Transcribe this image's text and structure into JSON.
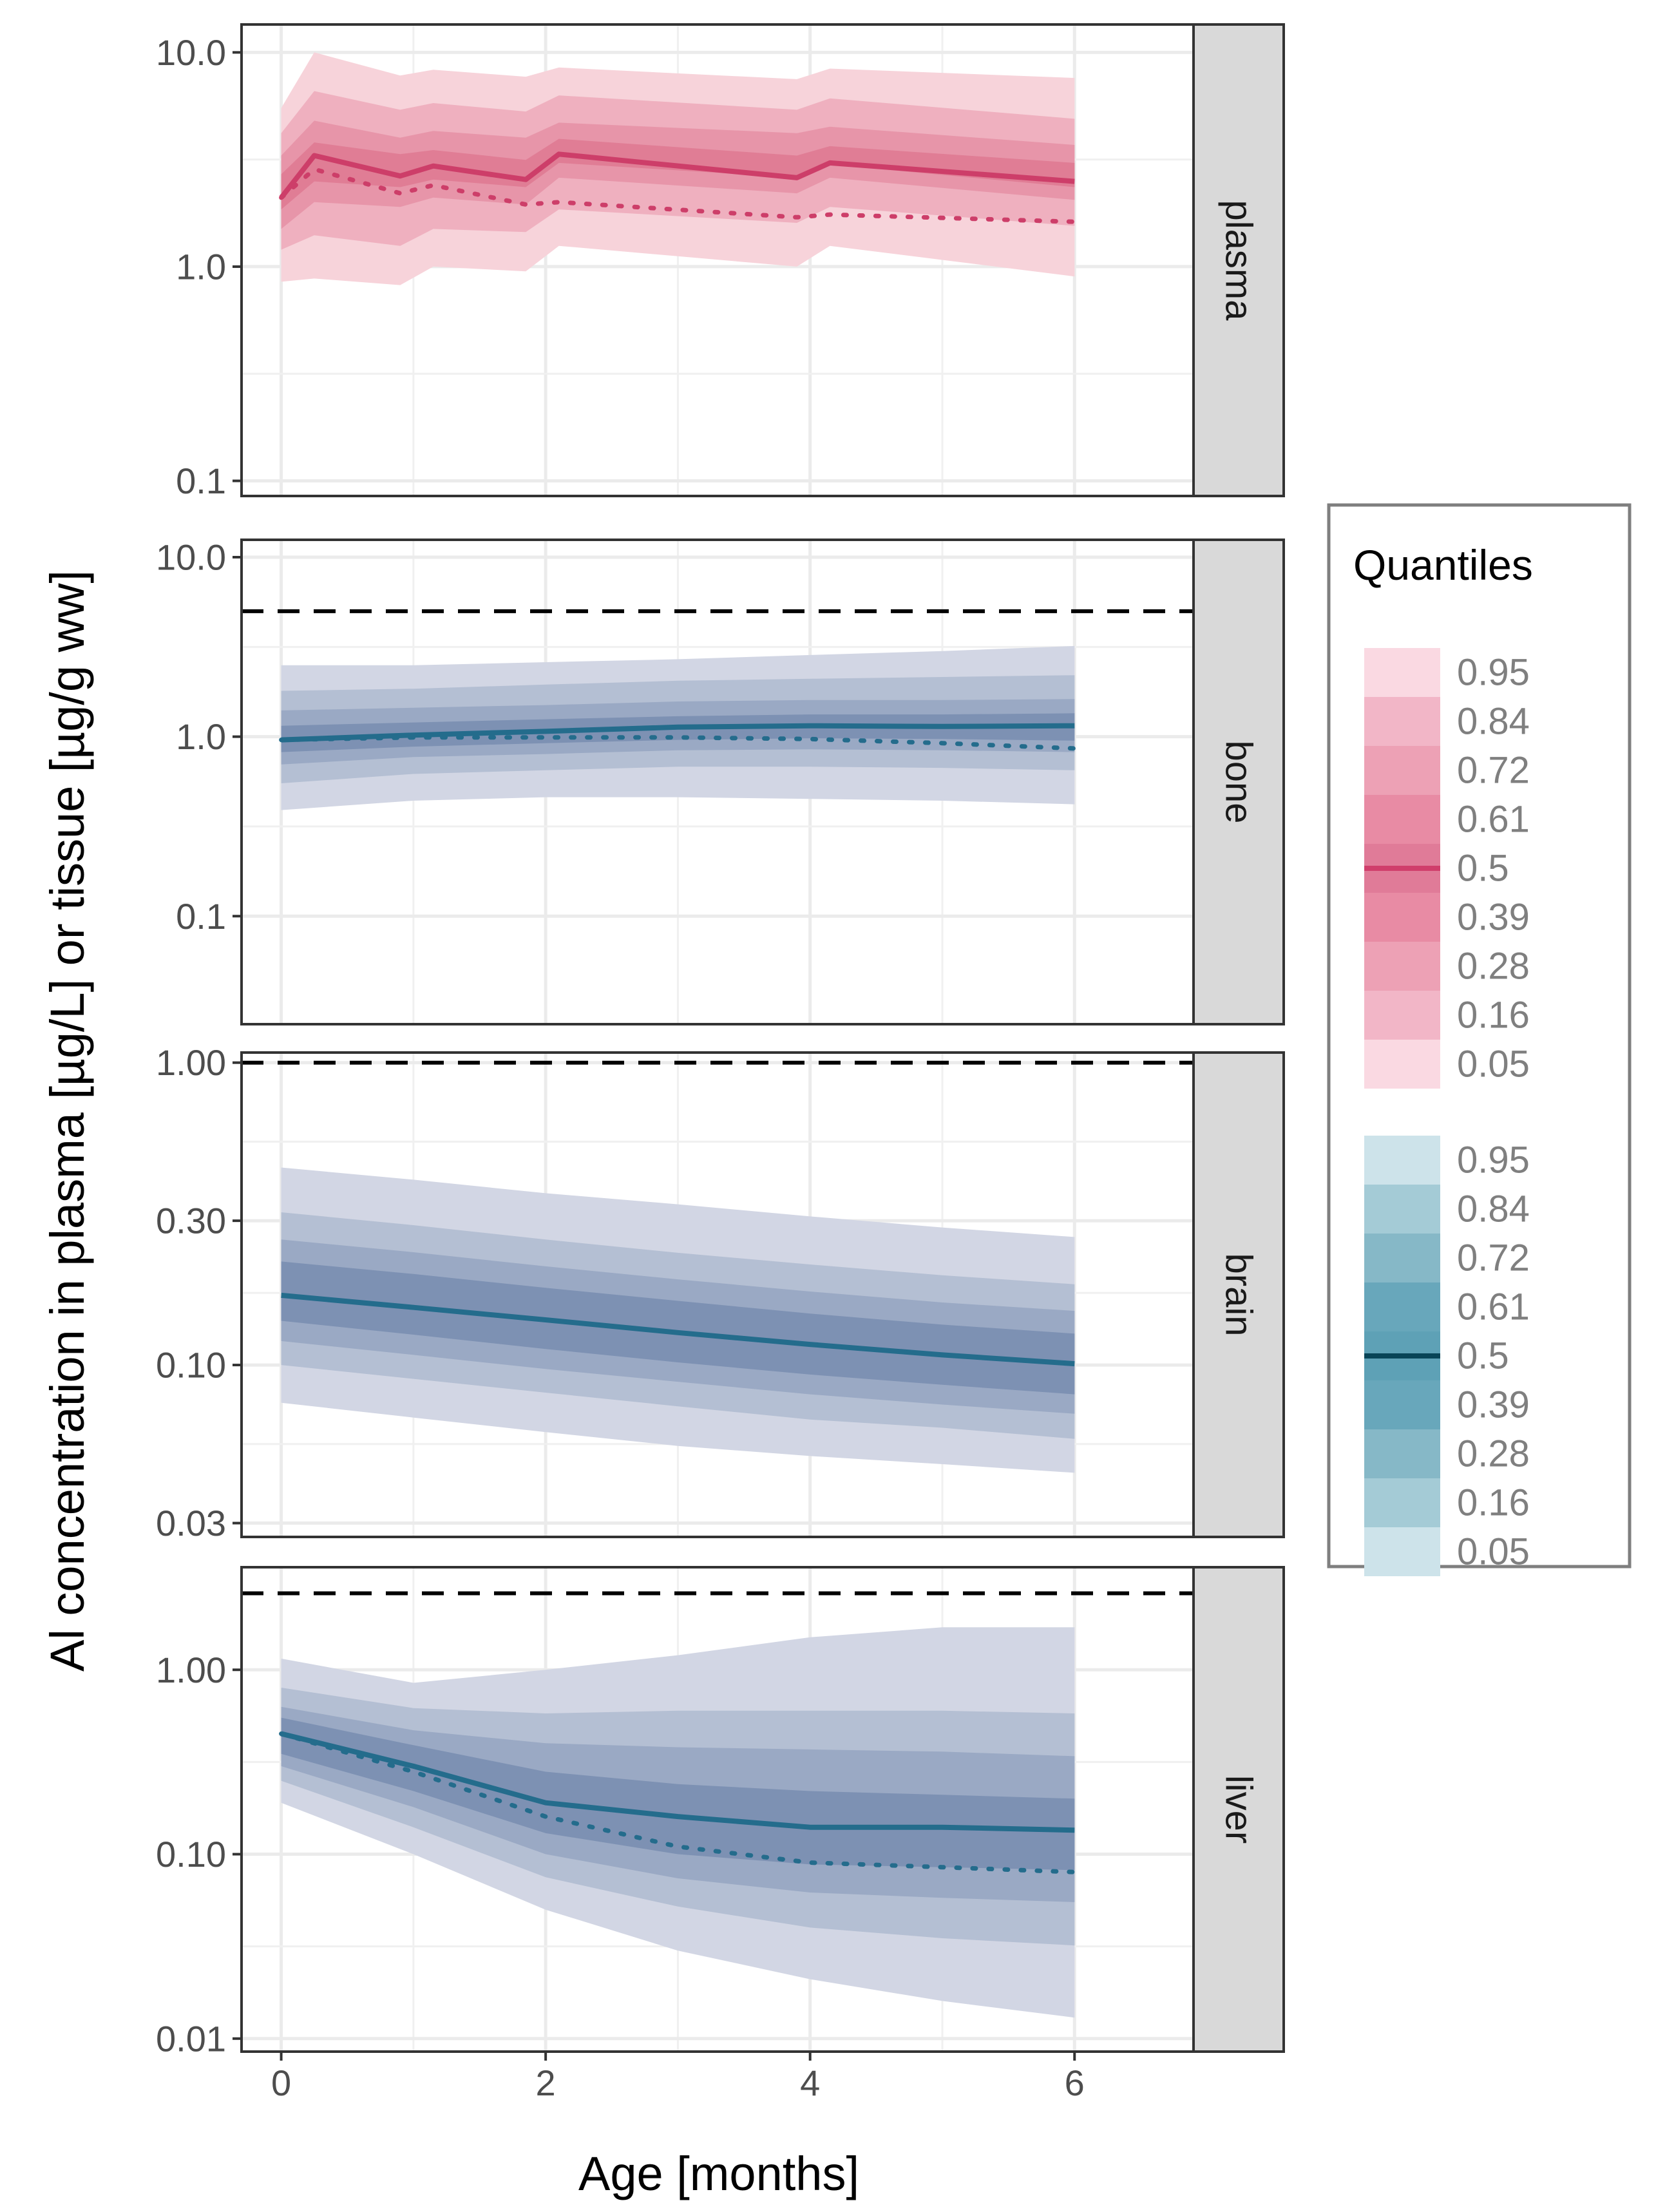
{
  "chart_data": {
    "type": "area",
    "xlabel": "Age [months]",
    "ylabel": "Al concentration in plasma [µg/L] or tissue [µg/g ww]",
    "x_ticks": [
      0,
      2,
      4,
      6
    ],
    "xlim": [
      -0.3,
      6.9
    ],
    "y_scale": "log",
    "grid": true,
    "facet_strip_position": "right",
    "legend": {
      "title": "Quantiles",
      "position": "right",
      "groups": [
        {
          "colors": [
            "#fad9e2",
            "#f2b6c7",
            "#eda1b5",
            "#e88ba4",
            "#e07b98",
            "#e88ba4",
            "#eda1b5",
            "#f2b6c7",
            "#fad9e2"
          ],
          "median_color": "#d03e6b",
          "labels": [
            "0.95",
            "0.84",
            "0.72",
            "0.61",
            "0.5",
            "0.39",
            "0.28",
            "0.16",
            "0.05"
          ]
        },
        {
          "colors": [
            "#cde3ea",
            "#a4cbd6",
            "#86b8c7",
            "#68a7bb",
            "#5ea1b6",
            "#68a7bb",
            "#86b8c7",
            "#a4cbd6",
            "#cde3ea"
          ],
          "median_color": "#084457",
          "labels": [
            "0.95",
            "0.84",
            "0.72",
            "0.61",
            "0.5",
            "0.39",
            "0.28",
            "0.16",
            "0.05"
          ]
        }
      ]
    },
    "panels": [
      {
        "strip": "plasma",
        "y_ticks": [
          "10.0",
          "1.0",
          "0.1"
        ],
        "y_tick_values": [
          10,
          1,
          0.1
        ],
        "ylim": [
          0.085,
          13.5
        ],
        "band_colors": [
          "#f7d3da",
          "#efb0bf",
          "#e795a9",
          "#e07d95"
        ],
        "median_color": "#cd3e69",
        "x": [
          0,
          0.25,
          0.9,
          1.15,
          1.85,
          2.1,
          3.9,
          4.15,
          6
        ],
        "bands": [
          {
            "lo": [
              0.85,
              0.88,
              0.82,
              1.0,
              0.95,
              1.25,
              1.0,
              1.25,
              0.9
            ],
            "hi": [
              5.5,
              10.0,
              7.8,
              8.3,
              7.7,
              8.5,
              7.5,
              8.4,
              7.6
            ]
          },
          {
            "lo": [
              1.2,
              1.4,
              1.25,
              1.5,
              1.45,
              1.85,
              1.6,
              1.9,
              1.55
            ],
            "hi": [
              4.2,
              6.6,
              5.4,
              5.8,
              5.3,
              6.3,
              5.4,
              6.1,
              4.9
            ]
          },
          {
            "lo": [
              1.5,
              2.0,
              1.9,
              2.1,
              1.95,
              2.6,
              2.2,
              2.6,
              2.05
            ],
            "hi": [
              3.3,
              4.8,
              4.0,
              4.3,
              4.0,
              4.7,
              4.2,
              4.5,
              3.7
            ]
          },
          {
            "lo": [
              1.85,
              2.5,
              2.35,
              2.55,
              2.35,
              3.05,
              2.6,
              3.0,
              2.35
            ],
            "hi": [
              2.7,
              3.8,
              3.35,
              3.5,
              3.15,
              3.95,
              3.3,
              3.65,
              3.05
            ]
          }
        ],
        "median": [
          2.1,
          3.3,
          2.65,
          2.95,
          2.55,
          3.35,
          2.6,
          3.05,
          2.5
        ],
        "mean": [
          2.1,
          2.85,
          2.2,
          2.4,
          1.95,
          2.0,
          1.7,
          1.75,
          1.62
        ]
      },
      {
        "strip": "bone",
        "y_ticks": [
          "10.0",
          "1.0",
          "0.1"
        ],
        "y_tick_values": [
          10,
          1,
          0.1
        ],
        "ylim": [
          0.025,
          12.5
        ],
        "threshold": 5,
        "band_colors": [
          "#d2d6e4",
          "#b4bfd3",
          "#9aa9c4",
          "#7d91b3"
        ],
        "median_color": "#246c8c",
        "x": [
          0,
          1,
          2,
          3,
          4,
          5,
          6
        ],
        "bands": [
          {
            "lo": [
              0.39,
              0.44,
              0.46,
              0.46,
              0.45,
              0.44,
              0.42
            ],
            "hi": [
              2.5,
              2.5,
              2.6,
              2.7,
              2.85,
              3.0,
              3.2
            ]
          },
          {
            "lo": [
              0.55,
              0.62,
              0.65,
              0.68,
              0.68,
              0.67,
              0.65
            ],
            "hi": [
              1.8,
              1.85,
              1.95,
              2.05,
              2.1,
              2.15,
              2.2
            ]
          },
          {
            "lo": [
              0.7,
              0.77,
              0.8,
              0.84,
              0.85,
              0.84,
              0.82
            ],
            "hi": [
              1.4,
              1.45,
              1.5,
              1.57,
              1.6,
              1.6,
              1.62
            ]
          },
          {
            "lo": [
              0.82,
              0.88,
              0.92,
              0.96,
              0.98,
              0.97,
              0.95
            ],
            "hi": [
              1.15,
              1.2,
              1.25,
              1.3,
              1.33,
              1.33,
              1.35
            ]
          }
        ],
        "median": [
          0.96,
          1.02,
          1.07,
          1.13,
          1.15,
          1.14,
          1.15
        ],
        "mean": [
          0.96,
          0.99,
          0.99,
          0.99,
          0.97,
          0.92,
          0.86
        ]
      },
      {
        "strip": "brain",
        "y_ticks": [
          "1.00",
          "0.30",
          "0.10",
          "0.03"
        ],
        "y_tick_values": [
          1,
          0.3,
          0.1,
          0.03
        ],
        "ylim": [
          0.027,
          1.08
        ],
        "threshold": 1,
        "band_colors": [
          "#d2d6e4",
          "#b4bfd3",
          "#9aa9c4",
          "#7d91b3"
        ],
        "median_color": "#246c8c",
        "x": [
          0,
          1,
          2,
          3,
          4,
          5,
          6
        ],
        "bands": [
          {
            "lo": [
              0.075,
              0.067,
              0.06,
              0.054,
              0.05,
              0.047,
              0.044
            ],
            "hi": [
              0.45,
              0.41,
              0.37,
              0.34,
              0.31,
              0.285,
              0.265
            ]
          },
          {
            "lo": [
              0.1,
              0.09,
              0.081,
              0.073,
              0.066,
              0.062,
              0.057
            ],
            "hi": [
              0.32,
              0.29,
              0.26,
              0.235,
              0.215,
              0.198,
              0.185
            ]
          },
          {
            "lo": [
              0.12,
              0.108,
              0.097,
              0.088,
              0.08,
              0.074,
              0.069
            ],
            "hi": [
              0.26,
              0.236,
              0.212,
              0.192,
              0.175,
              0.161,
              0.151
            ]
          },
          {
            "lo": [
              0.14,
              0.126,
              0.113,
              0.102,
              0.093,
              0.086,
              0.08
            ],
            "hi": [
              0.22,
              0.2,
              0.18,
              0.163,
              0.148,
              0.136,
              0.127
            ]
          }
        ],
        "median": [
          0.17,
          0.155,
          0.141,
          0.128,
          0.117,
          0.108,
          0.101
        ]
      },
      {
        "strip": "liver",
        "y_ticks": [
          "1.00",
          "0.10",
          "0.01"
        ],
        "y_tick_values": [
          1,
          0.1,
          0.01
        ],
        "ylim": [
          0.0085,
          3.6
        ],
        "threshold": 2.6,
        "band_colors": [
          "#d2d6e4",
          "#b4bfd3",
          "#9aa9c4",
          "#7d91b3"
        ],
        "median_color": "#246c8c",
        "x": [
          0,
          1,
          2,
          3,
          4,
          5,
          6
        ],
        "bands": [
          {
            "lo": [
              0.19,
              0.1,
              0.05,
              0.03,
              0.021,
              0.016,
              0.013
            ],
            "hi": [
              1.15,
              0.85,
              1.0,
              1.2,
              1.5,
              1.7,
              1.7
            ]
          },
          {
            "lo": [
              0.25,
              0.14,
              0.075,
              0.052,
              0.04,
              0.035,
              0.032
            ],
            "hi": [
              0.8,
              0.62,
              0.58,
              0.6,
              0.6,
              0.6,
              0.58
            ]
          },
          {
            "lo": [
              0.3,
              0.18,
              0.1,
              0.074,
              0.062,
              0.058,
              0.055
            ],
            "hi": [
              0.63,
              0.47,
              0.4,
              0.38,
              0.37,
              0.36,
              0.34
            ]
          },
          {
            "lo": [
              0.35,
              0.22,
              0.13,
              0.1,
              0.088,
              0.085,
              0.082
            ],
            "hi": [
              0.55,
              0.39,
              0.28,
              0.24,
              0.22,
              0.21,
              0.2
            ]
          }
        ],
        "median": [
          0.45,
          0.3,
          0.19,
          0.16,
          0.14,
          0.14,
          0.135
        ],
        "mean": [
          0.45,
          0.28,
          0.16,
          0.11,
          0.09,
          0.085,
          0.08
        ]
      }
    ]
  }
}
